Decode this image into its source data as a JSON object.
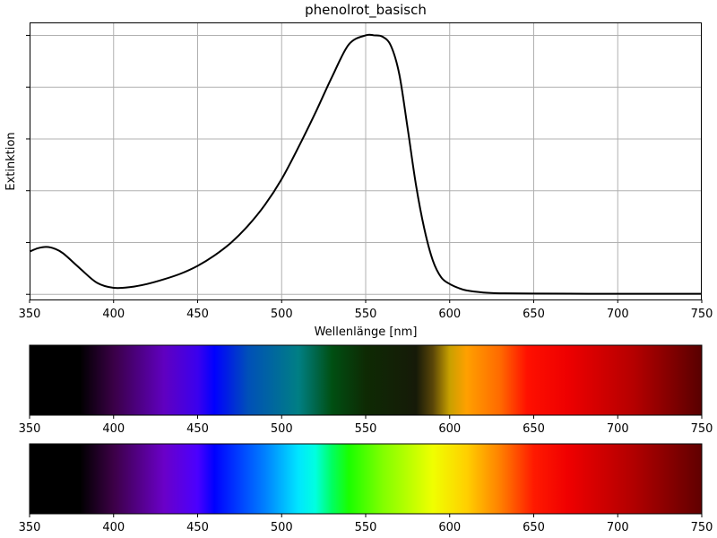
{
  "chart_data": [
    {
      "type": "line",
      "title": "phenolrot_basisch",
      "xlabel": "Wellenlänge [nm]",
      "ylabel": "Extinktion",
      "xlim": [
        350,
        750
      ],
      "ylim": [
        -0.02,
        1.05
      ],
      "x_ticks": [
        350,
        400,
        450,
        500,
        550,
        600,
        650,
        700,
        750
      ],
      "y_ticks": [
        0.0,
        0.2,
        0.4,
        0.6,
        0.8,
        1.0
      ],
      "y_tick_labels_shown": false,
      "grid": true,
      "line_color": "#000000",
      "x": [
        350,
        355,
        360,
        365,
        370,
        380,
        390,
        400,
        410,
        420,
        430,
        440,
        450,
        460,
        470,
        480,
        490,
        500,
        510,
        520,
        530,
        540,
        550,
        555,
        560,
        565,
        570,
        575,
        580,
        585,
        590,
        595,
        600,
        605,
        610,
        620,
        630,
        650,
        700,
        750
      ],
      "y": [
        0.165,
        0.178,
        0.183,
        0.176,
        0.158,
        0.1,
        0.045,
        0.025,
        0.028,
        0.04,
        0.058,
        0.08,
        0.11,
        0.15,
        0.2,
        0.265,
        0.345,
        0.445,
        0.568,
        0.7,
        0.84,
        0.965,
        1.0,
        1.0,
        0.995,
        0.96,
        0.85,
        0.64,
        0.42,
        0.25,
        0.13,
        0.065,
        0.04,
        0.025,
        0.015,
        0.007,
        0.004,
        0.003,
        0.002,
        0.002
      ]
    },
    {
      "type": "heatmap",
      "description": "dimmed visible spectrum strip",
      "x_ticks": [
        350,
        400,
        450,
        500,
        550,
        600,
        650,
        700,
        750
      ],
      "xlim": [
        350,
        750
      ]
    },
    {
      "type": "heatmap",
      "description": "full visible spectrum strip",
      "x_ticks": [
        350,
        400,
        450,
        500,
        550,
        600,
        650,
        700,
        750
      ],
      "xlim": [
        350,
        750
      ]
    }
  ]
}
